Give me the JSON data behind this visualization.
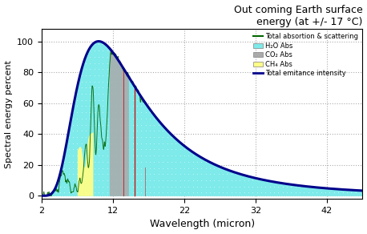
{
  "title": "Out coming Earth surface\nenergy (at +/- 17 °C)",
  "xlabel": "Wavelength (micron)",
  "ylabel": "Spectral energy percent",
  "xlim": [
    2,
    47
  ],
  "ylim": [
    -2,
    108
  ],
  "xticks": [
    2,
    12,
    22,
    32,
    42
  ],
  "yticks": [
    0,
    20,
    40,
    60,
    80,
    100
  ],
  "bg_color": "#ffffff",
  "grid_color": "#888888",
  "blackbody_color": "#00008B",
  "h2o_fill_color": "#7EEAEA",
  "green_line_color": "#006600",
  "co2_line_color": "#cc0000",
  "ch4_fill_color": "#ffff88",
  "gray_fill_color": "#aaaaaa",
  "legend_labels": [
    "Total absortion & scattering",
    "H₂O Abs",
    "CO₂ Abs",
    "CH₄ Abs",
    "Total emitance intensity"
  ]
}
